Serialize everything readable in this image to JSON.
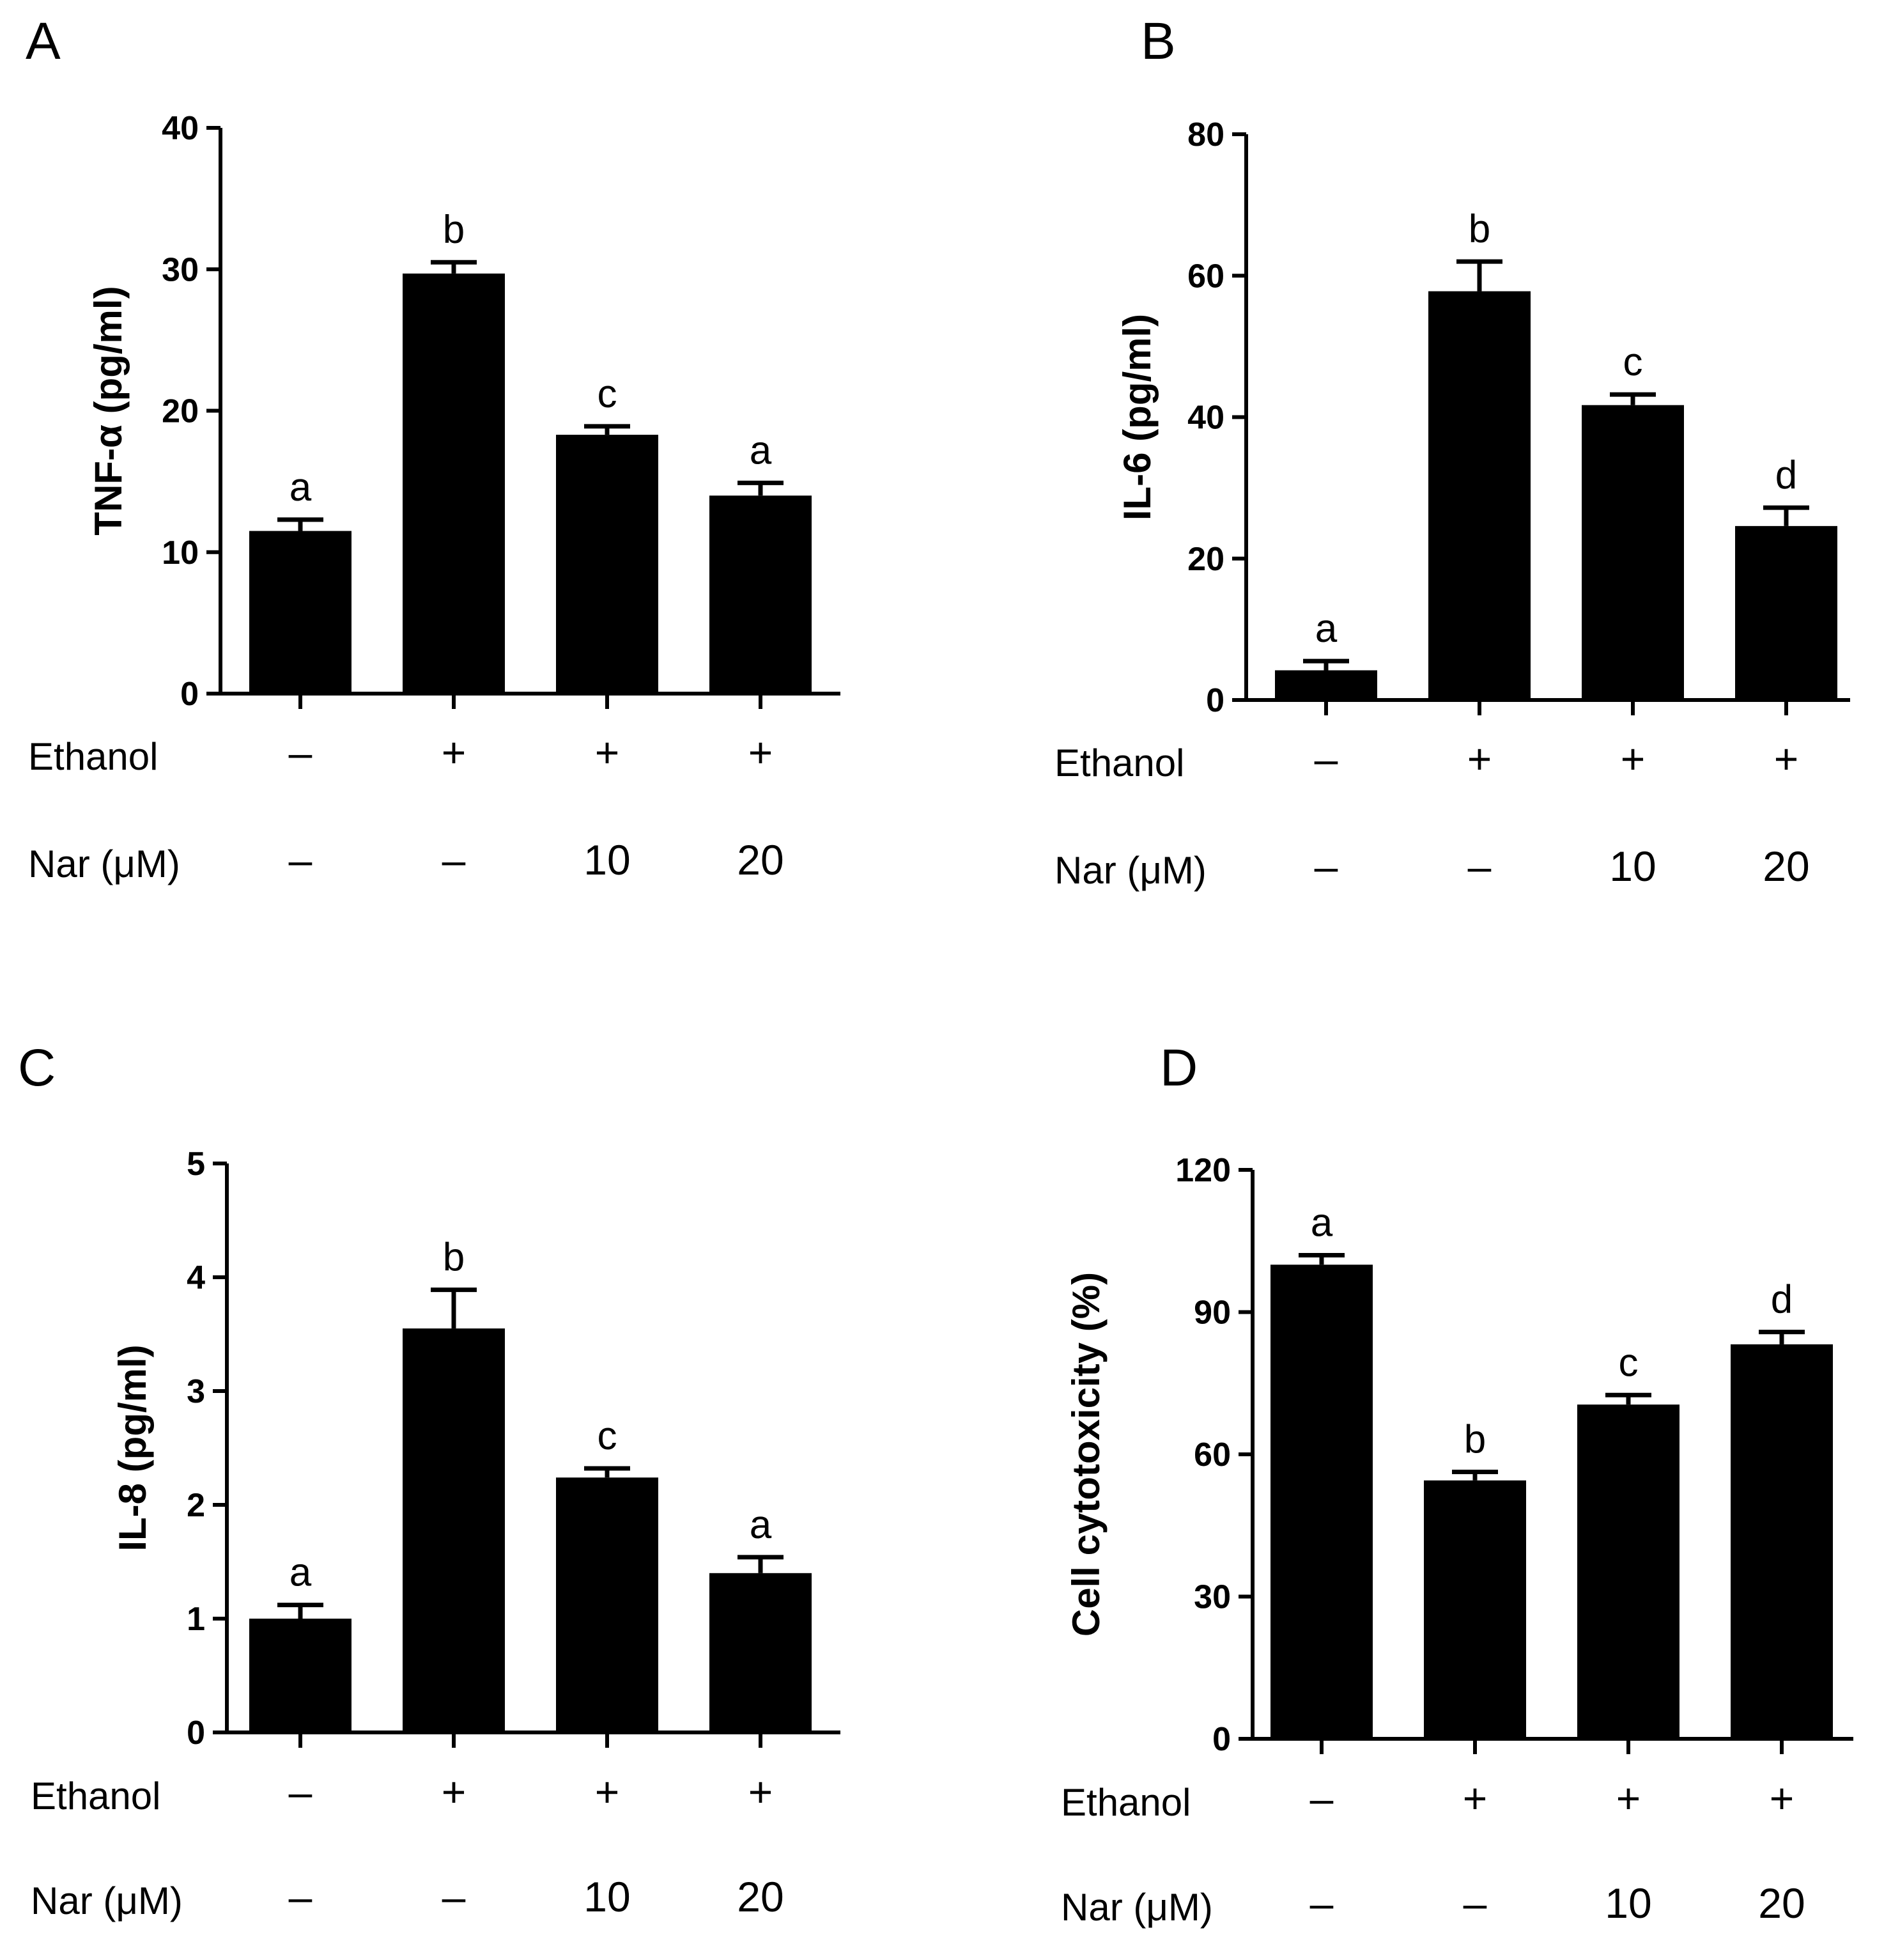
{
  "colors": {
    "bar": "#000000",
    "axis": "#000000",
    "background": "#ffffff"
  },
  "row_labels": {
    "ethanol": "Ethanol",
    "nar": "Nar (μM)"
  },
  "chart_data": [
    {
      "panel": "A",
      "type": "bar",
      "ylabel": "TNF-α (pg/ml)",
      "ylim": [
        0,
        40
      ],
      "yticks": [
        "0",
        "10",
        "20",
        "30",
        "40"
      ],
      "categories": [
        "control",
        "ethanol",
        "ethanol + Nar 10",
        "ethanol + Nar 20"
      ],
      "values": [
        11.5,
        29.7,
        18.3,
        14.0
      ],
      "errors": [
        0.8,
        0.8,
        0.6,
        0.9
      ],
      "significance": [
        "a",
        "b",
        "c",
        "a"
      ],
      "ethanol": [
        "–",
        "+",
        "+",
        "+"
      ],
      "nar": [
        "–",
        "–",
        "10",
        "20"
      ]
    },
    {
      "panel": "B",
      "type": "bar",
      "ylabel": "IL-6 (pg/ml)",
      "ylim": [
        0,
        80
      ],
      "yticks": [
        "0",
        "20",
        "40",
        "60",
        "80"
      ],
      "categories": [
        "control",
        "ethanol",
        "ethanol + Nar 10",
        "ethanol + Nar 20"
      ],
      "values": [
        4.2,
        57.8,
        41.7,
        24.6
      ],
      "errors": [
        1.3,
        4.2,
        1.5,
        2.6
      ],
      "significance": [
        "a",
        "b",
        "c",
        "d"
      ],
      "ethanol": [
        "–",
        "+",
        "+",
        "+"
      ],
      "nar": [
        "–",
        "–",
        "10",
        "20"
      ]
    },
    {
      "panel": "C",
      "type": "bar",
      "ylabel": "IL-8 (pg/ml)",
      "ylim": [
        0,
        5
      ],
      "yticks": [
        "0",
        "1",
        "2",
        "3",
        "4",
        "5"
      ],
      "categories": [
        "control",
        "ethanol",
        "ethanol + Nar 10",
        "ethanol + Nar 20"
      ],
      "values": [
        1.0,
        3.55,
        2.24,
        1.4
      ],
      "errors": [
        0.12,
        0.34,
        0.08,
        0.14
      ],
      "significance": [
        "a",
        "b",
        "c",
        "a"
      ],
      "ethanol": [
        "–",
        "+",
        "+",
        "+"
      ],
      "nar": [
        "–",
        "–",
        "10",
        "20"
      ]
    },
    {
      "panel": "D",
      "type": "bar",
      "ylabel": "Cell cytotoxicity (%)",
      "ylim": [
        0,
        120
      ],
      "yticks": [
        "0",
        "30",
        "60",
        "90",
        "120"
      ],
      "categories": [
        "control",
        "ethanol",
        "ethanol + Nar 10",
        "ethanol + Nar 20"
      ],
      "values": [
        100,
        54.5,
        70.5,
        83.2
      ],
      "errors": [
        2.0,
        1.8,
        2.0,
        2.6
      ],
      "significance": [
        "a",
        "b",
        "c",
        "d"
      ],
      "ethanol": [
        "–",
        "+",
        "+",
        "+"
      ],
      "nar": [
        "–",
        "–",
        "10",
        "20"
      ]
    }
  ]
}
